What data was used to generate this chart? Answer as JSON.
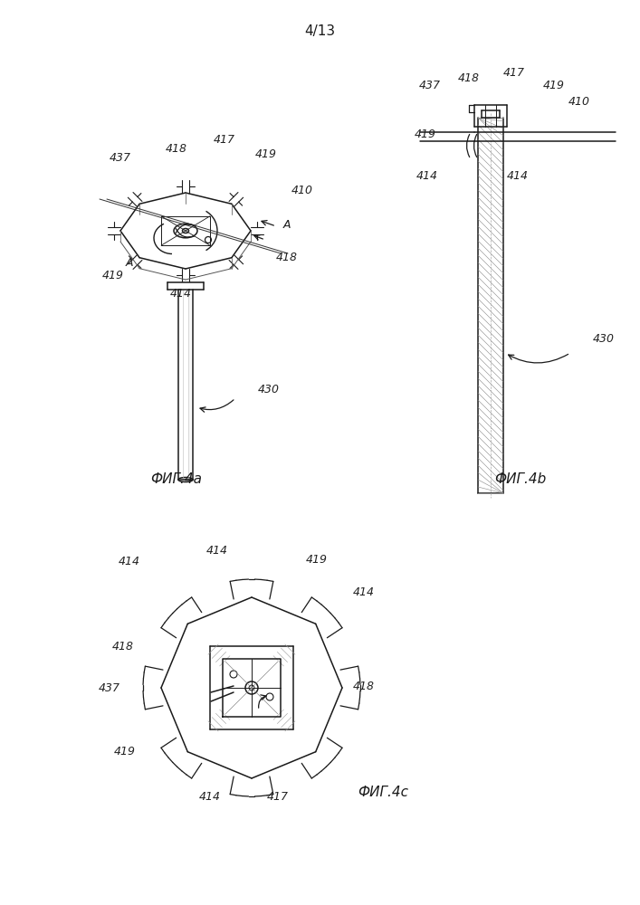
{
  "page_label": "4/13",
  "fig_labels": [
    "ФИГ.4a",
    "ФИГ.4b",
    "ФИГ.4c"
  ],
  "bg_color": "#ffffff",
  "line_color": "#1a1a1a",
  "label_color": "#222222",
  "font_size_label": 9,
  "font_size_fig": 11,
  "font_size_page": 11
}
